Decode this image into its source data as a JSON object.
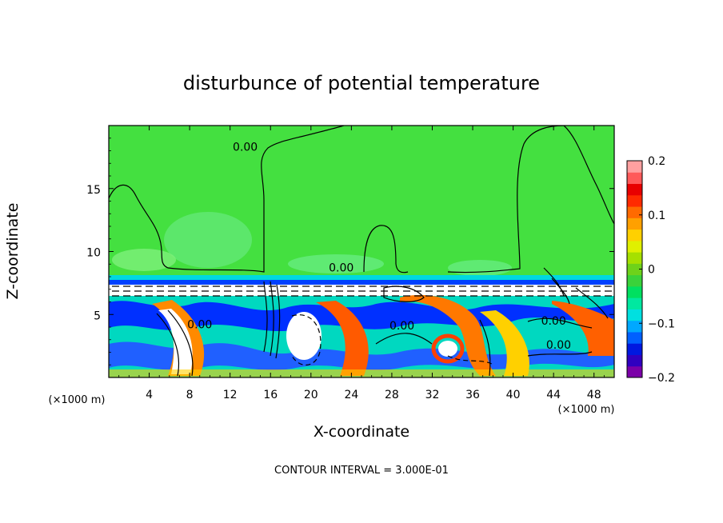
{
  "chart_data": {
    "type": "heatmap",
    "title": "disturbunce of potential temperature",
    "xlabel": "X-coordinate",
    "ylabel": "Z-coordinate",
    "x_unit": "(×1000 m)",
    "y_unit": "(×1000 m)",
    "xlim": [
      0,
      50
    ],
    "ylim": [
      0,
      20
    ],
    "x_ticks": [
      4,
      8,
      12,
      16,
      20,
      24,
      28,
      32,
      36,
      40,
      44,
      48
    ],
    "y_ticks": [
      5,
      10,
      15
    ],
    "colorbar": {
      "range": [
        -0.2,
        0.2
      ],
      "tick_values": [
        0.2,
        0.1,
        0,
        -0.1,
        -0.2
      ],
      "tick_labels": [
        "0.2",
        "0.1",
        "0",
        "−0.1",
        "−0.2"
      ],
      "colors": [
        "#7b00a8",
        "#3000c0",
        "#0018e0",
        "#0060ff",
        "#00a8ff",
        "#00e0e0",
        "#00e8a0",
        "#00e060",
        "#3ad23a",
        "#6ed21a",
        "#a6e000",
        "#e0f000",
        "#ffd000",
        "#ffa000",
        "#ff6a00",
        "#ff2a00",
        "#e80000",
        "#ff5a5a",
        "#ffa0a0"
      ]
    },
    "contour_labels": [
      {
        "x": 13.5,
        "z": 18.0,
        "text": "0.00"
      },
      {
        "x": 23.0,
        "z": 8.4,
        "text": "0.00"
      },
      {
        "x": 9.0,
        "z": 3.9,
        "text": "0.00"
      },
      {
        "x": 29.0,
        "z": 3.8,
        "text": "0.00"
      },
      {
        "x": 44.0,
        "z": 4.2,
        "text": "0.00"
      },
      {
        "x": 44.5,
        "z": 2.3,
        "text": "0.00"
      }
    ],
    "contour_interval_label": "CONTOUR INTERVAL = 3.000E-01"
  }
}
